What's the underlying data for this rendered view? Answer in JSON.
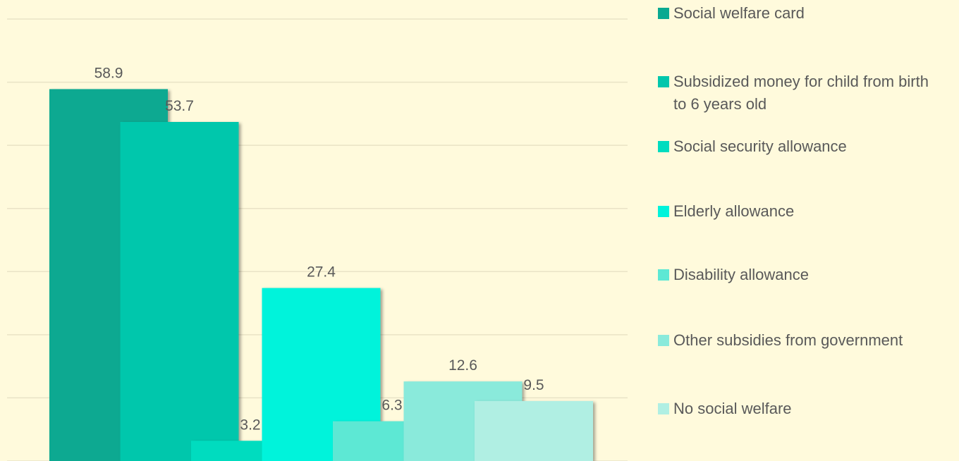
{
  "chart_data": {
    "type": "bar",
    "series": [
      {
        "name": "Social welfare card",
        "color": "#0aa991",
        "values": [
          58.9
        ]
      },
      {
        "name": "Subsidized money for child from birth to 6 years old",
        "color": "#00c7ac",
        "values": [
          53.7
        ]
      },
      {
        "name": "Social security allowance",
        "color": "#00dcbf",
        "values": [
          3.2
        ]
      },
      {
        "name": "Elderly allowance",
        "color": "#00f3db",
        "values": [
          27.4
        ]
      },
      {
        "name": "Disability allowance",
        "color": "#5de8d4",
        "values": [
          6.3
        ]
      },
      {
        "name": "Other subsidies from government",
        "color": "#8aeadb",
        "values": [
          12.6
        ]
      },
      {
        "name": "No social welfare",
        "color": "#b0efe3",
        "values": [
          9.5
        ]
      }
    ],
    "ylim": [
      0,
      70
    ],
    "yticks": [
      0,
      10,
      20,
      30,
      40,
      50,
      60,
      70
    ],
    "grid": true,
    "legend": "right"
  }
}
